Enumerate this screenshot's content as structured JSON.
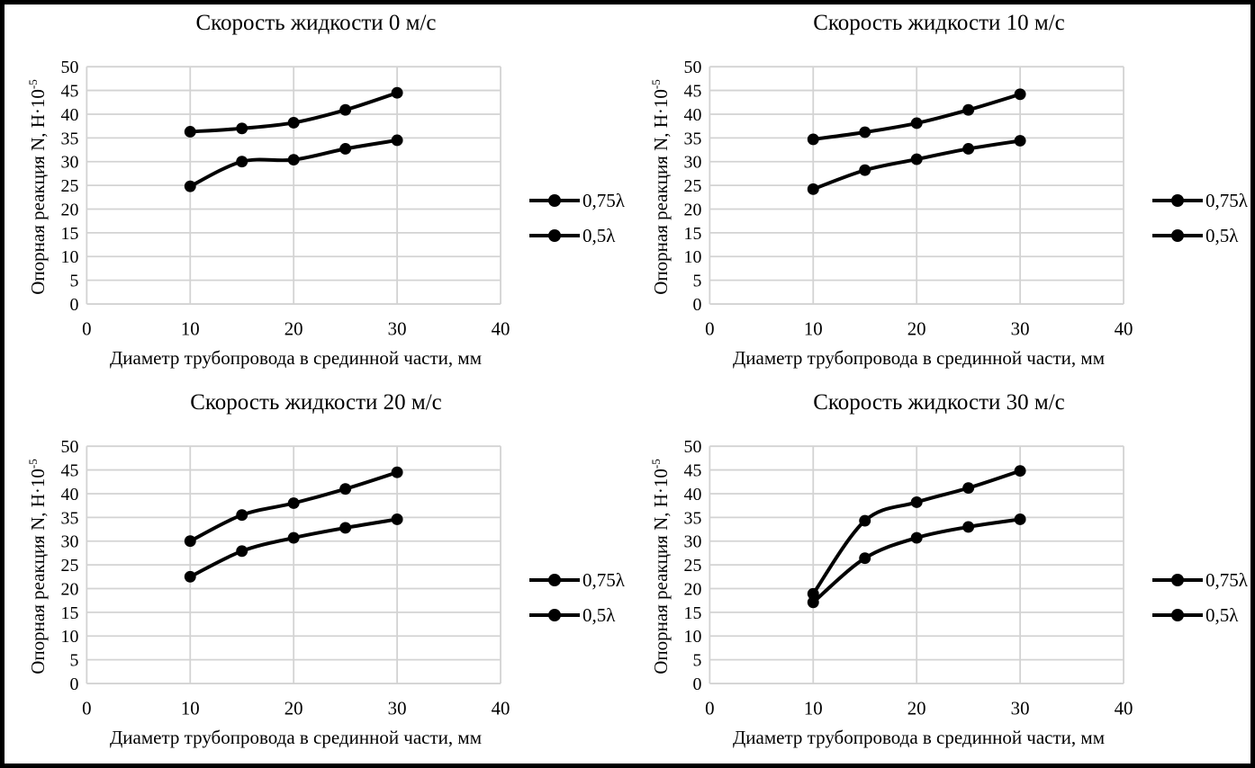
{
  "page": {
    "background": "#ffffff",
    "frame_border_color": "#000000",
    "text_color": "#000000",
    "gridline_color": "#d3d3d3",
    "series_color": "#000000"
  },
  "chart_data": [
    {
      "type": "line",
      "title": "Скорость жидкости 0 м/с",
      "xlabel": "Диаметр трубопровода в срединной части, мм",
      "ylabel": "Опорная реакция N, Н·10",
      "ylabel_superscript": "-5",
      "xlim": [
        0,
        40
      ],
      "ylim": [
        0,
        50
      ],
      "x_ticks": [
        0,
        10,
        20,
        30,
        40
      ],
      "y_ticks": [
        0,
        5,
        10,
        15,
        20,
        25,
        30,
        35,
        40,
        45,
        50
      ],
      "grid": true,
      "legend_position": "right",
      "marker": "filled-circle",
      "x": [
        10,
        15,
        20,
        25,
        30
      ],
      "series": [
        {
          "name": "0,75λ",
          "values": [
            36.3,
            37.0,
            38.2,
            40.9,
            44.5
          ]
        },
        {
          "name": "0,5λ",
          "values": [
            24.8,
            30.0,
            30.4,
            32.7,
            34.5
          ]
        }
      ]
    },
    {
      "type": "line",
      "title": "Скорость жидкости 10 м/с",
      "xlabel": "Диаметр трубопровода в срединной части, мм",
      "ylabel": "Опорная реакция N, Н·10",
      "ylabel_superscript": "-5",
      "xlim": [
        0,
        40
      ],
      "ylim": [
        0,
        50
      ],
      "x_ticks": [
        0,
        10,
        20,
        30,
        40
      ],
      "y_ticks": [
        0,
        5,
        10,
        15,
        20,
        25,
        30,
        35,
        40,
        45,
        50
      ],
      "grid": true,
      "legend_position": "right",
      "marker": "filled-circle",
      "x": [
        10,
        15,
        20,
        25,
        30
      ],
      "series": [
        {
          "name": "0,75λ",
          "values": [
            34.7,
            36.2,
            38.1,
            40.9,
            44.2
          ]
        },
        {
          "name": "0,5λ",
          "values": [
            24.2,
            28.2,
            30.5,
            32.7,
            34.4
          ]
        }
      ]
    },
    {
      "type": "line",
      "title": "Скорость жидкости 20 м/с",
      "xlabel": "Диаметр трубопровода в срединной части, мм",
      "ylabel": "Опорная реакция N, Н·10",
      "ylabel_superscript": "-5",
      "xlim": [
        0,
        40
      ],
      "ylim": [
        0,
        50
      ],
      "x_ticks": [
        0,
        10,
        20,
        30,
        40
      ],
      "y_ticks": [
        0,
        5,
        10,
        15,
        20,
        25,
        30,
        35,
        40,
        45,
        50
      ],
      "grid": true,
      "legend_position": "right",
      "marker": "filled-circle",
      "x": [
        10,
        15,
        20,
        25,
        30
      ],
      "series": [
        {
          "name": "0,75λ",
          "values": [
            30.0,
            35.5,
            38.0,
            41.0,
            44.5
          ]
        },
        {
          "name": "0,5λ",
          "values": [
            22.5,
            27.9,
            30.7,
            32.8,
            34.6
          ]
        }
      ]
    },
    {
      "type": "line",
      "title": "Скорость жидкости 30 м/с",
      "xlabel": "Диаметр трубопровода в срединной части, мм",
      "ylabel": "Опорная реакция N, Н·10",
      "ylabel_superscript": "-5",
      "xlim": [
        0,
        40
      ],
      "ylim": [
        0,
        50
      ],
      "x_ticks": [
        0,
        10,
        20,
        30,
        40
      ],
      "y_ticks": [
        0,
        5,
        10,
        15,
        20,
        25,
        30,
        35,
        40,
        45,
        50
      ],
      "grid": true,
      "legend_position": "right",
      "marker": "filled-circle",
      "x": [
        10,
        15,
        20,
        25,
        30
      ],
      "series": [
        {
          "name": "0,75λ",
          "values": [
            18.9,
            34.3,
            38.2,
            41.2,
            44.8
          ]
        },
        {
          "name": "0,5λ",
          "values": [
            17.1,
            26.4,
            30.7,
            33.0,
            34.6
          ]
        }
      ]
    }
  ]
}
